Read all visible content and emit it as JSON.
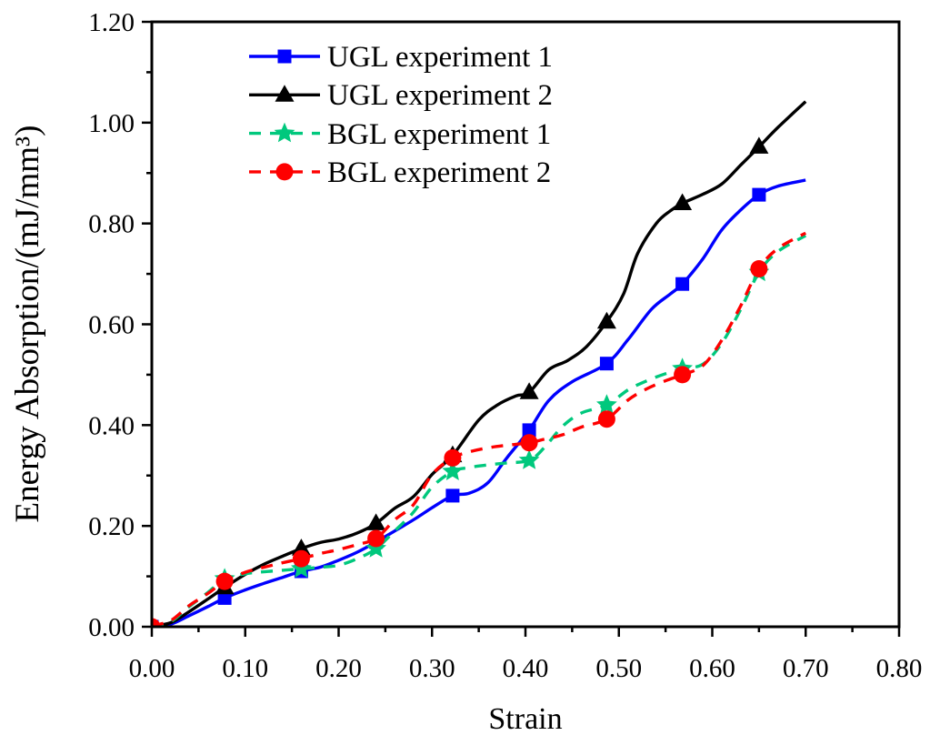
{
  "figure": {
    "background": "#ffffff",
    "axis_color": "#000000"
  },
  "axes": {
    "x": {
      "min": 0.0,
      "max": 0.8,
      "major_step": 0.1,
      "minor_step": 0.05,
      "major_tick_labels": [
        "0.00",
        "0.10",
        "0.20",
        "0.30",
        "0.40",
        "0.50",
        "0.60",
        "0.70",
        "0.80"
      ]
    },
    "y": {
      "min": 0.0,
      "max": 1.2,
      "major_step": 0.2,
      "minor_step": 0.1,
      "major_tick_labels": [
        "0.00",
        "0.20",
        "0.40",
        "0.60",
        "0.80",
        "1.00",
        "1.20"
      ]
    }
  },
  "legend": {
    "items": [
      {
        "label": "UGL experiment 1",
        "color": "#0000fe",
        "line_style": "solid",
        "marker": "square"
      },
      {
        "label": "UGL experiment 2",
        "color": "#000000",
        "line_style": "solid",
        "marker": "triangle"
      },
      {
        "label": "BGL experiment 1",
        "color": "#00c87d",
        "line_style": "dashed",
        "marker": "star"
      },
      {
        "label": "BGL experiment 2",
        "color": "#fe0000",
        "line_style": "dashed",
        "marker": "circle"
      }
    ]
  },
  "chart_data": {
    "type": "line",
    "title": "",
    "xlabel": "Strain",
    "ylabel": "Energy Absorption/(mJ/mm³)",
    "xlim": [
      0.0,
      0.8
    ],
    "ylim": [
      0.0,
      1.2
    ],
    "grid": false,
    "legend_position": "top-left-inside",
    "marker_x": [
      0.0,
      0.078,
      0.16,
      0.24,
      0.322,
      0.404,
      0.487,
      0.568,
      0.65
    ],
    "series": [
      {
        "name": "UGL experiment 1",
        "color": "#0000fe",
        "line_style": "solid",
        "marker": "square",
        "marker_points": [
          [
            0.0,
            0.0
          ],
          [
            0.078,
            0.057
          ],
          [
            0.16,
            0.11
          ],
          [
            0.24,
            0.168
          ],
          [
            0.322,
            0.26
          ],
          [
            0.404,
            0.39
          ],
          [
            0.487,
            0.522
          ],
          [
            0.568,
            0.68
          ],
          [
            0.65,
            0.857
          ]
        ],
        "curve_points": [
          [
            0,
            0.002
          ],
          [
            0.02,
            0.005
          ],
          [
            0.04,
            0.022
          ],
          [
            0.06,
            0.04
          ],
          [
            0.078,
            0.057
          ],
          [
            0.1,
            0.073
          ],
          [
            0.12,
            0.086
          ],
          [
            0.14,
            0.098
          ],
          [
            0.16,
            0.11
          ],
          [
            0.18,
            0.118
          ],
          [
            0.2,
            0.132
          ],
          [
            0.22,
            0.148
          ],
          [
            0.24,
            0.168
          ],
          [
            0.26,
            0.19
          ],
          [
            0.28,
            0.212
          ],
          [
            0.3,
            0.236
          ],
          [
            0.322,
            0.26
          ],
          [
            0.34,
            0.265
          ],
          [
            0.36,
            0.286
          ],
          [
            0.38,
            0.335
          ],
          [
            0.404,
            0.39
          ],
          [
            0.425,
            0.449
          ],
          [
            0.45,
            0.486
          ],
          [
            0.487,
            0.522
          ],
          [
            0.51,
            0.57
          ],
          [
            0.535,
            0.63
          ],
          [
            0.555,
            0.66
          ],
          [
            0.568,
            0.68
          ],
          [
            0.59,
            0.73
          ],
          [
            0.61,
            0.787
          ],
          [
            0.63,
            0.826
          ],
          [
            0.65,
            0.857
          ],
          [
            0.67,
            0.874
          ],
          [
            0.7,
            0.886
          ]
        ]
      },
      {
        "name": "UGL experiment 2",
        "color": "#000000",
        "line_style": "solid",
        "marker": "triangle",
        "marker_points": [
          [
            0.0,
            0.0
          ],
          [
            0.078,
            0.078
          ],
          [
            0.16,
            0.155
          ],
          [
            0.24,
            0.205
          ],
          [
            0.322,
            0.34
          ],
          [
            0.404,
            0.465
          ],
          [
            0.487,
            0.605
          ],
          [
            0.568,
            0.84
          ],
          [
            0.65,
            0.952
          ]
        ],
        "curve_points": [
          [
            0,
            0.002
          ],
          [
            0.02,
            0.008
          ],
          [
            0.04,
            0.03
          ],
          [
            0.06,
            0.055
          ],
          [
            0.078,
            0.078
          ],
          [
            0.1,
            0.104
          ],
          [
            0.12,
            0.124
          ],
          [
            0.14,
            0.14
          ],
          [
            0.16,
            0.155
          ],
          [
            0.18,
            0.167
          ],
          [
            0.2,
            0.174
          ],
          [
            0.22,
            0.186
          ],
          [
            0.24,
            0.205
          ],
          [
            0.26,
            0.235
          ],
          [
            0.28,
            0.258
          ],
          [
            0.3,
            0.302
          ],
          [
            0.322,
            0.34
          ],
          [
            0.35,
            0.41
          ],
          [
            0.37,
            0.44
          ],
          [
            0.39,
            0.458
          ],
          [
            0.404,
            0.465
          ],
          [
            0.425,
            0.51
          ],
          [
            0.445,
            0.528
          ],
          [
            0.465,
            0.555
          ],
          [
            0.487,
            0.605
          ],
          [
            0.505,
            0.66
          ],
          [
            0.52,
            0.74
          ],
          [
            0.54,
            0.8
          ],
          [
            0.555,
            0.825
          ],
          [
            0.568,
            0.84
          ],
          [
            0.59,
            0.858
          ],
          [
            0.61,
            0.878
          ],
          [
            0.63,
            0.915
          ],
          [
            0.65,
            0.952
          ],
          [
            0.67,
            0.99
          ],
          [
            0.7,
            1.042
          ]
        ]
      },
      {
        "name": "BGL experiment 1",
        "color": "#00c87d",
        "line_style": "dashed",
        "marker": "star",
        "marker_points": [
          [
            0.0,
            0.0
          ],
          [
            0.078,
            0.095
          ],
          [
            0.16,
            0.115
          ],
          [
            0.24,
            0.155
          ],
          [
            0.322,
            0.308
          ],
          [
            0.404,
            0.33
          ],
          [
            0.487,
            0.44
          ],
          [
            0.568,
            0.512
          ],
          [
            0.65,
            0.703
          ]
        ],
        "curve_points": [
          [
            0,
            0.002
          ],
          [
            0.02,
            0.01
          ],
          [
            0.04,
            0.04
          ],
          [
            0.06,
            0.068
          ],
          [
            0.078,
            0.095
          ],
          [
            0.1,
            0.105
          ],
          [
            0.12,
            0.109
          ],
          [
            0.14,
            0.112
          ],
          [
            0.16,
            0.115
          ],
          [
            0.18,
            0.118
          ],
          [
            0.2,
            0.122
          ],
          [
            0.22,
            0.135
          ],
          [
            0.24,
            0.155
          ],
          [
            0.26,
            0.19
          ],
          [
            0.28,
            0.227
          ],
          [
            0.3,
            0.277
          ],
          [
            0.322,
            0.308
          ],
          [
            0.34,
            0.316
          ],
          [
            0.36,
            0.321
          ],
          [
            0.38,
            0.325
          ],
          [
            0.404,
            0.33
          ],
          [
            0.42,
            0.355
          ],
          [
            0.44,
            0.398
          ],
          [
            0.46,
            0.424
          ],
          [
            0.487,
            0.44
          ],
          [
            0.51,
            0.47
          ],
          [
            0.53,
            0.488
          ],
          [
            0.55,
            0.502
          ],
          [
            0.568,
            0.512
          ],
          [
            0.59,
            0.521
          ],
          [
            0.61,
            0.562
          ],
          [
            0.63,
            0.628
          ],
          [
            0.65,
            0.703
          ],
          [
            0.67,
            0.744
          ],
          [
            0.7,
            0.776
          ]
        ]
      },
      {
        "name": "BGL experiment 2",
        "color": "#fe0000",
        "line_style": "dashed",
        "marker": "circle",
        "marker_points": [
          [
            0.0,
            0.0
          ],
          [
            0.078,
            0.09
          ],
          [
            0.16,
            0.135
          ],
          [
            0.24,
            0.175
          ],
          [
            0.322,
            0.335
          ],
          [
            0.404,
            0.365
          ],
          [
            0.487,
            0.412
          ],
          [
            0.568,
            0.5
          ],
          [
            0.65,
            0.71
          ]
        ],
        "curve_points": [
          [
            0,
            0.002
          ],
          [
            0.02,
            0.012
          ],
          [
            0.04,
            0.042
          ],
          [
            0.06,
            0.066
          ],
          [
            0.078,
            0.09
          ],
          [
            0.1,
            0.108
          ],
          [
            0.12,
            0.118
          ],
          [
            0.14,
            0.127
          ],
          [
            0.16,
            0.135
          ],
          [
            0.18,
            0.145
          ],
          [
            0.2,
            0.153
          ],
          [
            0.22,
            0.163
          ],
          [
            0.24,
            0.175
          ],
          [
            0.26,
            0.212
          ],
          [
            0.28,
            0.242
          ],
          [
            0.3,
            0.302
          ],
          [
            0.322,
            0.335
          ],
          [
            0.34,
            0.347
          ],
          [
            0.36,
            0.355
          ],
          [
            0.38,
            0.36
          ],
          [
            0.404,
            0.365
          ],
          [
            0.42,
            0.372
          ],
          [
            0.44,
            0.381
          ],
          [
            0.46,
            0.396
          ],
          [
            0.487,
            0.412
          ],
          [
            0.51,
            0.45
          ],
          [
            0.53,
            0.472
          ],
          [
            0.55,
            0.488
          ],
          [
            0.568,
            0.5
          ],
          [
            0.59,
            0.518
          ],
          [
            0.61,
            0.568
          ],
          [
            0.63,
            0.635
          ],
          [
            0.65,
            0.71
          ],
          [
            0.67,
            0.75
          ],
          [
            0.7,
            0.781
          ]
        ]
      }
    ]
  }
}
